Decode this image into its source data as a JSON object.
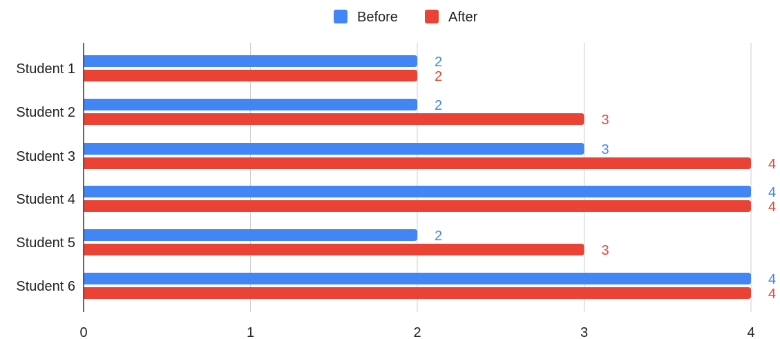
{
  "chart_data": {
    "type": "bar",
    "orientation": "horizontal",
    "categories": [
      "Student 1",
      "Student 2",
      "Student 3",
      "Student 4",
      "Student 5",
      "Student 6"
    ],
    "series": [
      {
        "name": "Before",
        "color": "#4285F4",
        "values": [
          2,
          2,
          3,
          4,
          2,
          4
        ]
      },
      {
        "name": "After",
        "color": "#EA4335",
        "values": [
          2,
          3,
          4,
          4,
          3,
          4
        ]
      }
    ],
    "x_ticks": [
      "0",
      "1",
      "2",
      "3",
      "4"
    ],
    "xlim": [
      0,
      4
    ],
    "grid": true,
    "legend_position": "top",
    "data_labels": true,
    "title": "",
    "xlabel": "",
    "ylabel": ""
  }
}
